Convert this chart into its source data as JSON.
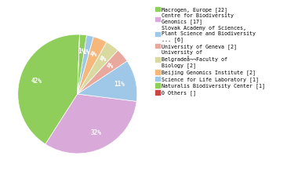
{
  "values": [
    22,
    17,
    6,
    2,
    2,
    2,
    1,
    1,
    0
  ],
  "slice_colors": [
    "#8fce5a",
    "#d9a9d9",
    "#9ec7e8",
    "#e8a89e",
    "#d9d9a0",
    "#f6b87a",
    "#9ec7e8",
    "#8fce5a",
    "#e06666"
  ],
  "legend_colors": [
    "#8fce5a",
    "#d9a9d9",
    "#9ec7e8",
    "#e8a89e",
    "#d9d9a0",
    "#f6b87a",
    "#9ec7e8",
    "#8fce5a",
    "#cc4444"
  ],
  "legend_labels": [
    "Macrogen, Europe [22]",
    "Centre for Biodiversity\nGenomics [17]",
    "Slovak Academy of Sciences,\nPlant Science and Biodiversity\n... [6]",
    "University of Geneva [2]",
    "University of\nBelgradeå¬¬Faculty of\nBiology [2]",
    "Beijing Genomics Institute [2]",
    "Science for Life Laboratory [1]",
    "Naturalis Biodiversity Center [1]",
    "0 Others []"
  ],
  "startangle": 88,
  "background_color": "#ffffff",
  "text_color": "white",
  "font_size": 5.5
}
